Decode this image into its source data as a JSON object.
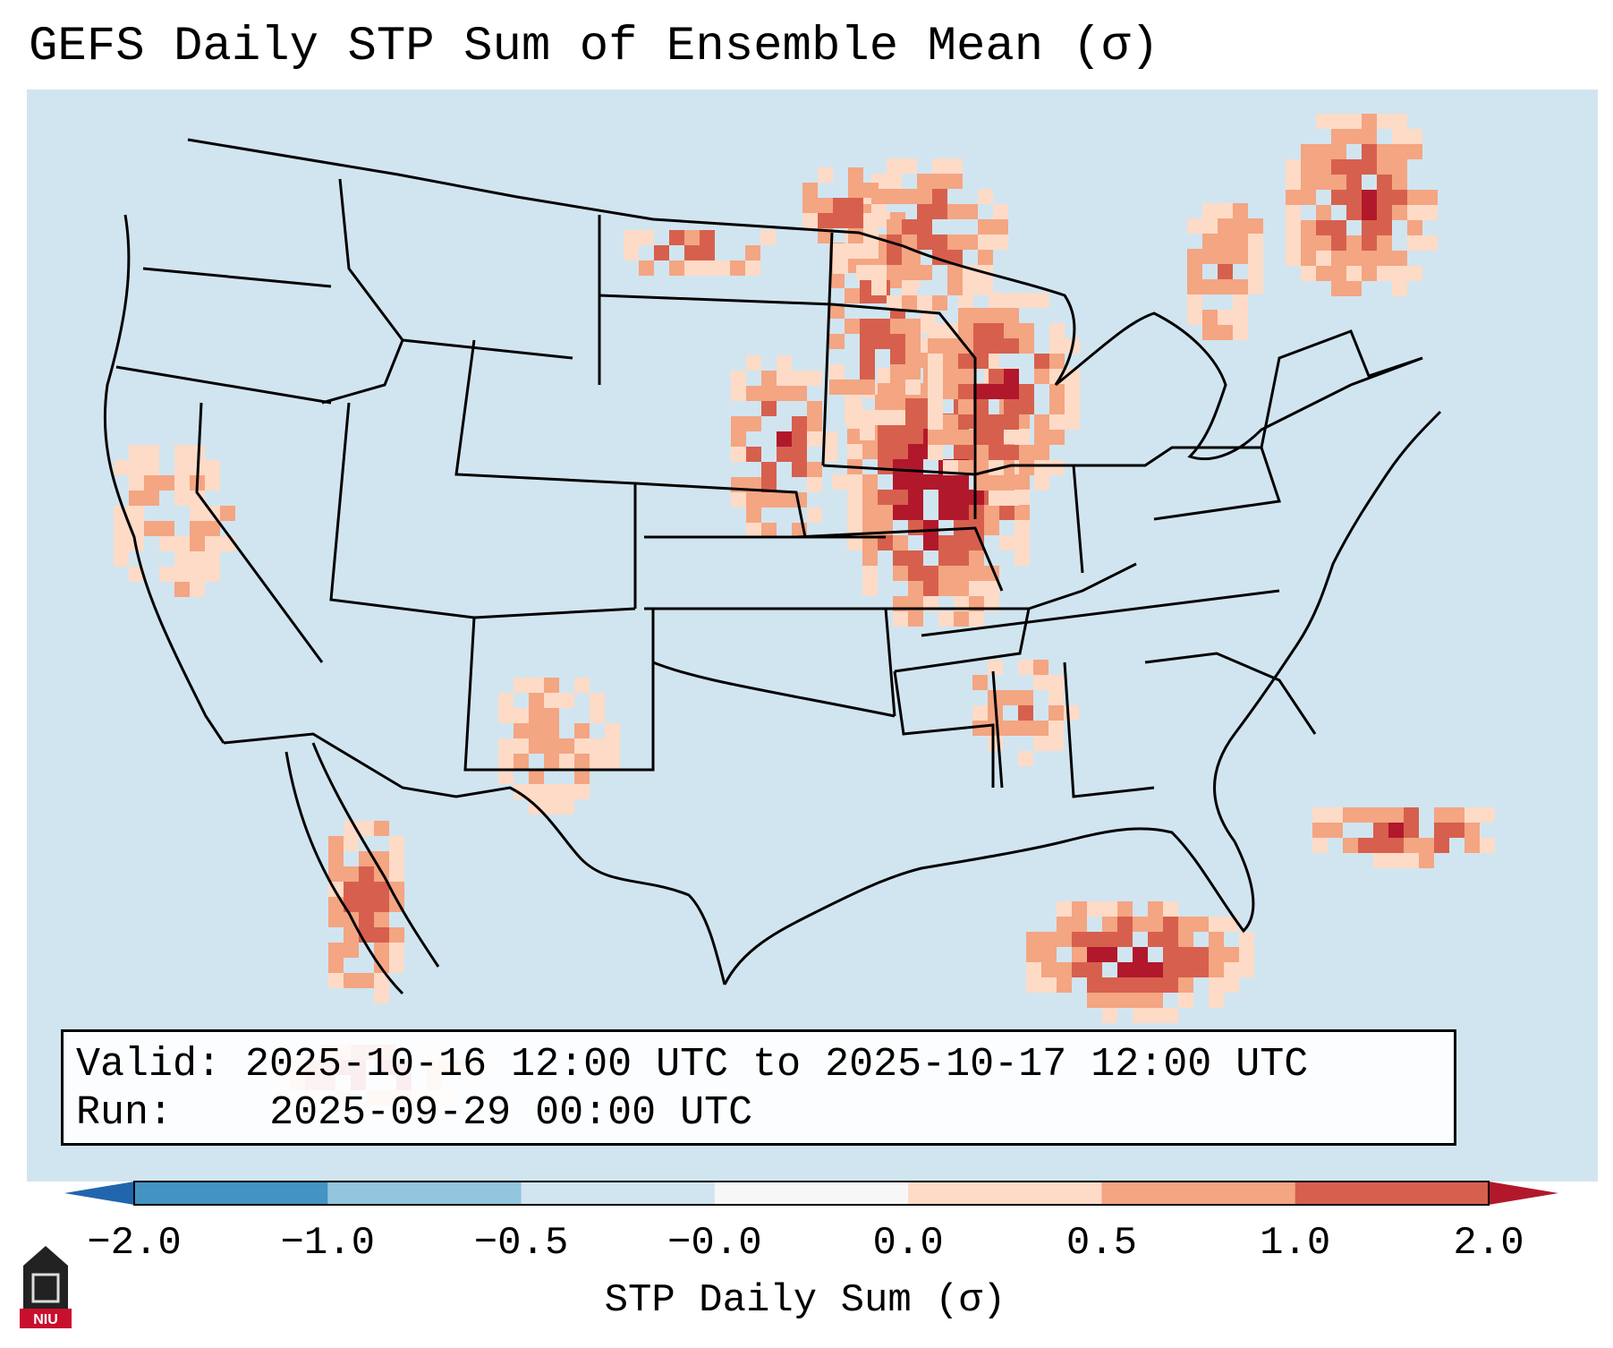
{
  "title": "GEFS Daily STP Sum of Ensemble Mean (σ)",
  "info": {
    "valid_label": "Valid:",
    "valid_value": "2025-10-16 12:00 UTC to 2025-10-17 12:00 UTC",
    "run_label": "Run:",
    "run_value": "2025-09-29 00:00 UTC"
  },
  "colorbar": {
    "label": "STP Daily Sum (σ)",
    "ticks": [
      "−2.0",
      "−1.0",
      "−0.5",
      "−0.0",
      "0.0",
      "0.5",
      "1.0",
      "2.0"
    ],
    "bins": [
      {
        "from": -2.0,
        "to": -1.0,
        "color": "#4393c3"
      },
      {
        "from": -1.0,
        "to": -0.5,
        "color": "#92c5de"
      },
      {
        "from": -0.5,
        "to": -0.0,
        "color": "#d1e5f0"
      },
      {
        "from": -0.0,
        "to": 0.0,
        "color": "#f7f7f7"
      },
      {
        "from": 0.0,
        "to": 0.5,
        "color": "#fddbc7"
      },
      {
        "from": 0.5,
        "to": 1.0,
        "color": "#f4a582"
      },
      {
        "from": 1.0,
        "to": 2.0,
        "color": "#d6604d"
      }
    ],
    "under_color": "#2166ac",
    "over_color": "#b2182b"
  },
  "colors": {
    "background": "#d1e5f0",
    "light_pos": "#fddbc7",
    "mid_pos": "#f4a582",
    "high_pos": "#d6604d",
    "max_pos": "#b2182b",
    "light_neg": "#92c5de",
    "border": "#000000"
  },
  "logo": {
    "text": "NIU"
  }
}
